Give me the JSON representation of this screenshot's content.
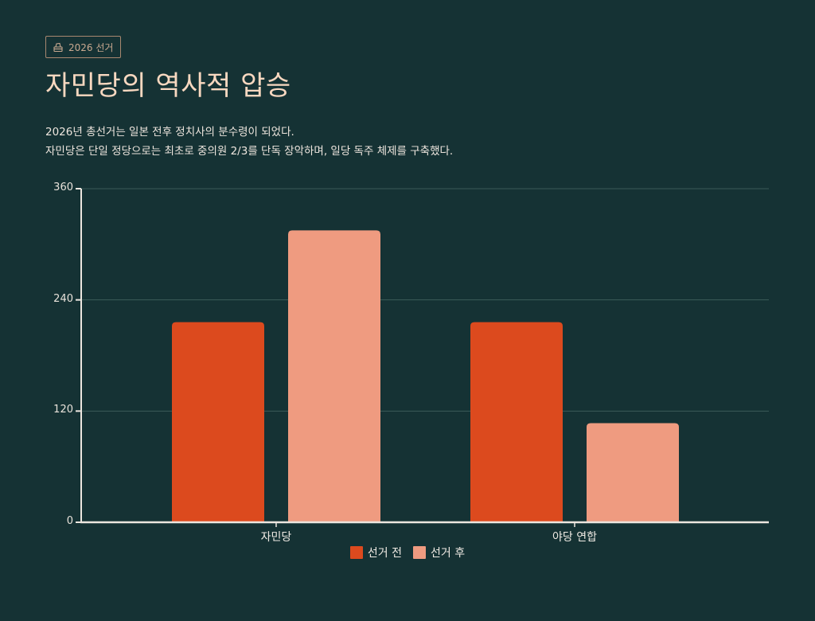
{
  "badge": {
    "icon": "ballot-box-icon",
    "label": "2026 선거"
  },
  "title": "자민당의 역사적 압승",
  "description": [
    "2026년 총선거는 일본 전후 정치사의 분수령이 되었다.",
    "자민당은 단일 정당으로는 최초로 중의원 2/3를 단독 장악하며, 일당 독주 체제를 구축했다."
  ],
  "colors": {
    "background": "#153234",
    "before": "#dc4a1e",
    "after": "#ef9b80",
    "grid": "#3b5b59",
    "axis": "#ece6df"
  },
  "chart_data": {
    "type": "bar",
    "title": "자민당의 역사적 압승",
    "categories": [
      "자민당",
      "야당 연합"
    ],
    "series": [
      {
        "name": "선거 전",
        "values": [
          216,
          216
        ]
      },
      {
        "name": "선거 후",
        "values": [
          315,
          107
        ]
      }
    ],
    "xlabel": "",
    "ylabel": "",
    "ylim": [
      0,
      360
    ],
    "yticks": [
      0,
      120,
      240,
      360
    ],
    "grid": true,
    "legend_position": "bottom"
  },
  "legend": [
    {
      "label": "선거 전"
    },
    {
      "label": "선거 후"
    }
  ]
}
